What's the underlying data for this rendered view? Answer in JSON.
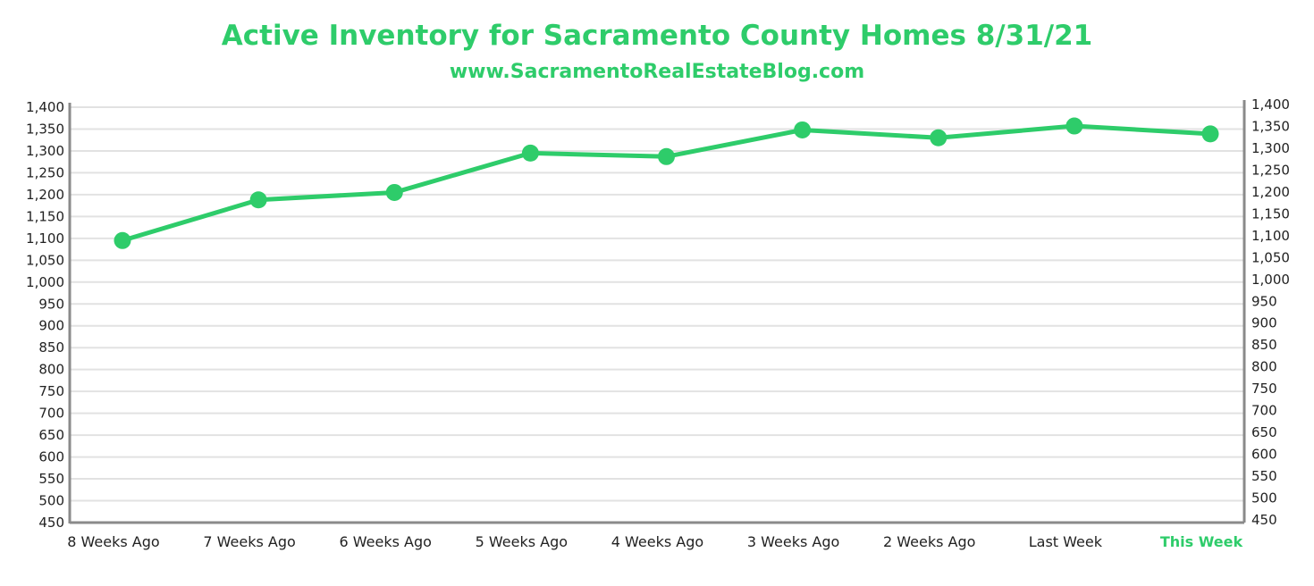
{
  "chart_data": {
    "type": "line",
    "title": "Active Inventory for Sacramento County Homes 8/31/21",
    "subtitle": "www.SacramentoRealEstateBlog.com",
    "categories": [
      "8 Weeks Ago",
      "7 Weeks Ago",
      "6 Weeks Ago",
      "5 Weeks Ago",
      "4 Weeks Ago",
      "3 Weeks Ago",
      "2 Weeks Ago",
      "Last Week",
      "This Week"
    ],
    "highlight_category": "This Week",
    "series": [
      {
        "values": [
          1095,
          1188,
          1205,
          1295,
          1287,
          1348,
          1330,
          1357,
          1339
        ]
      }
    ],
    "ylim": [
      450,
      1400
    ],
    "y_ticks": [
      "450",
      "500",
      "550",
      "600",
      "650",
      "700",
      "750",
      "800",
      "850",
      "900",
      "950",
      "1,000",
      "1,050",
      "1,100",
      "1,150",
      "1,200",
      "1,250",
      "1,300",
      "1,350",
      "1,400"
    ],
    "y_tick_values": [
      450,
      500,
      550,
      600,
      650,
      700,
      750,
      800,
      850,
      900,
      950,
      1000,
      1050,
      1100,
      1150,
      1200,
      1250,
      1300,
      1350,
      1400
    ],
    "grid": true,
    "secondary_axis": true,
    "colors": {
      "line": "#2ecc6a",
      "title": "#2ecc6a",
      "grid": "#e2e2e2",
      "axis": "#8a8a8a"
    }
  }
}
